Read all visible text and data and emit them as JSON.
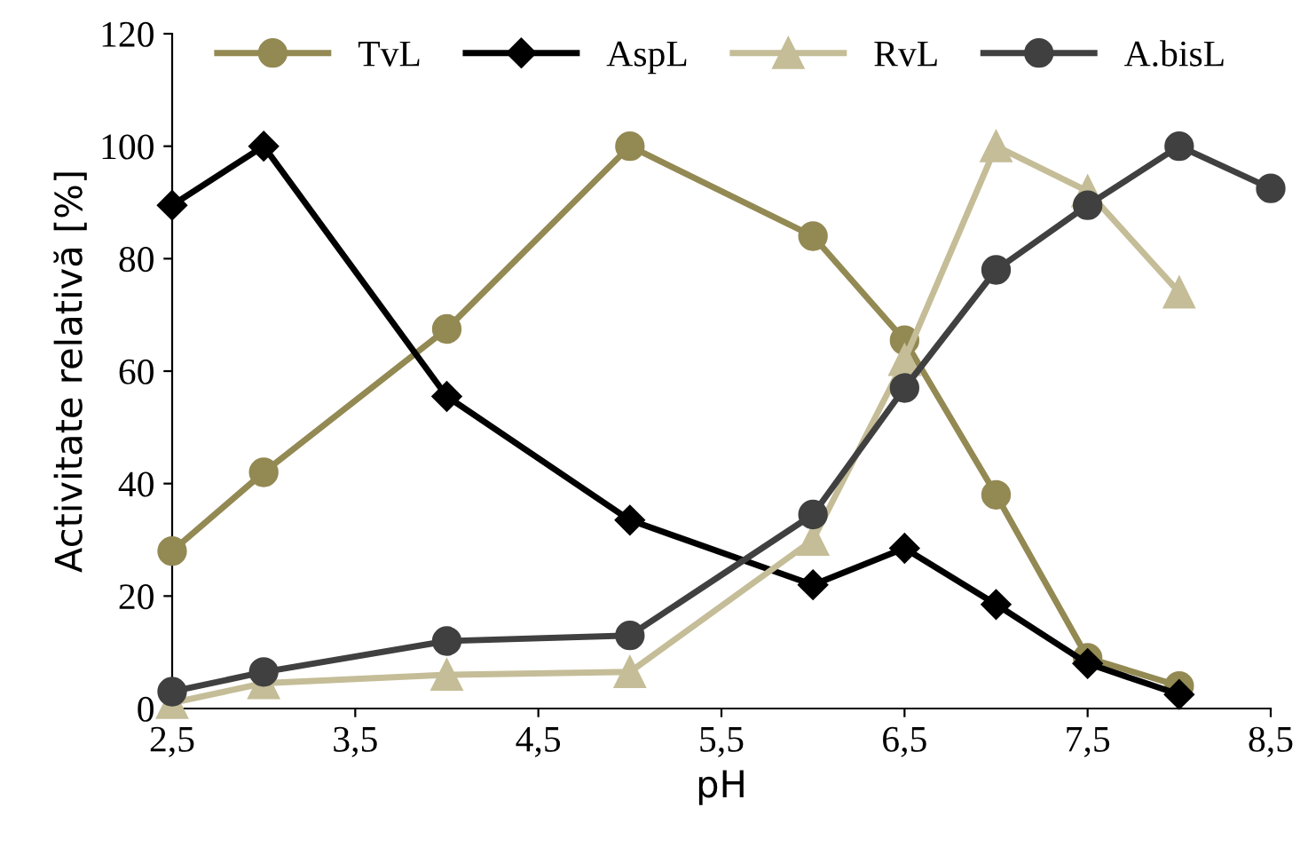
{
  "chart_data": {
    "type": "line",
    "xlabel": "pH",
    "ylabel": "Activitate relativă [%]",
    "x": [
      2.5,
      3,
      4,
      5,
      6,
      6.5,
      7,
      7.5,
      8,
      8.5
    ],
    "series": [
      {
        "name": "TvL",
        "color": "#938953",
        "marker": "circle",
        "values": [
          28,
          42,
          67.5,
          100,
          84,
          65.5,
          38,
          9,
          4,
          null
        ]
      },
      {
        "name": "AspL",
        "color": "#000000",
        "marker": "diamond",
        "values": [
          89.5,
          100,
          55.5,
          33.5,
          22,
          28.5,
          18.5,
          8,
          2.5,
          null
        ]
      },
      {
        "name": "RvL",
        "color": "#c4bd97",
        "marker": "triangle",
        "values": [
          1,
          4.5,
          6,
          6.5,
          30,
          62,
          100,
          92,
          74,
          null
        ]
      },
      {
        "name": "A.bisL",
        "color": "#404040",
        "marker": "circle",
        "values": [
          3,
          6.5,
          12,
          13,
          34.5,
          57,
          78,
          89.5,
          100,
          92.5
        ]
      }
    ],
    "xlim": [
      2.5,
      8.5
    ],
    "xticks": [
      {
        "value": 2.5,
        "label": "2,5"
      },
      {
        "value": 3.5,
        "label": "3,5"
      },
      {
        "value": 4.5,
        "label": "4,5"
      },
      {
        "value": 5.5,
        "label": "5,5"
      },
      {
        "value": 6.5,
        "label": "6,5"
      },
      {
        "value": 7.5,
        "label": "7,5"
      },
      {
        "value": 8.5,
        "label": "8,5"
      }
    ],
    "ylim": [
      0,
      120
    ],
    "yticks": [
      0,
      20,
      40,
      60,
      80,
      100,
      120
    ],
    "grid": false,
    "legend": "top",
    "line_style": "solid"
  }
}
